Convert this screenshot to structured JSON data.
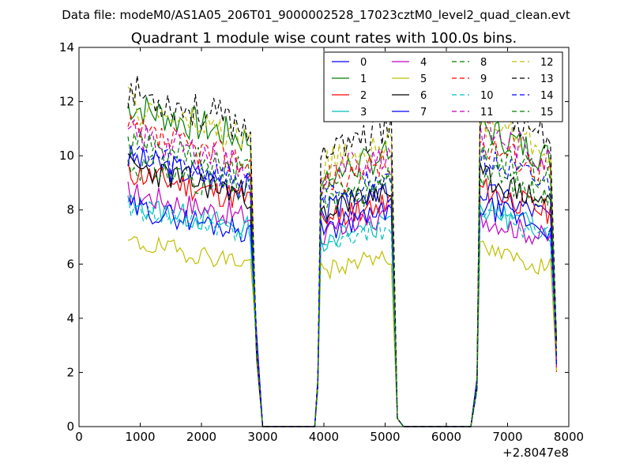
{
  "suptitle": "Data file: modeM0/AS1A05_206T01_9000002528_17023cztM0_level2_quad_clean.evt",
  "chart_data": {
    "type": "line",
    "title": "Quadrant 1 module wise count rates with 100.0s bins.",
    "xlabel": "",
    "ylabel": "",
    "x_offset_label": "+2.8047e8",
    "xlim": [
      0,
      8000
    ],
    "ylim": [
      0,
      14
    ],
    "xticks": [
      0,
      1000,
      2000,
      3000,
      4000,
      5000,
      6000,
      7000,
      8000
    ],
    "yticks": [
      0,
      2,
      4,
      6,
      8,
      10,
      12,
      14
    ],
    "grid": false,
    "legend_position": "top-right",
    "segments": [
      {
        "start": 800,
        "end": 2800
      },
      {
        "start": 3900,
        "end": 5100
      },
      {
        "start": 6500,
        "end": 7700
      }
    ],
    "series": [
      {
        "name": "0",
        "color": "#0000ff",
        "dashed": false,
        "levels": [
          9.2,
          8.3,
          8.1
        ],
        "seed": 3
      },
      {
        "name": "1",
        "color": "#007f00",
        "dashed": false,
        "levels": [
          11.0,
          9.6,
          10.3
        ],
        "seed": 7
      },
      {
        "name": "2",
        "color": "#ff0000",
        "dashed": false,
        "levels": [
          8.7,
          8.0,
          8.2
        ],
        "seed": 11
      },
      {
        "name": "3",
        "color": "#00bfbf",
        "dashed": false,
        "levels": [
          7.6,
          7.2,
          7.5
        ],
        "seed": 13
      },
      {
        "name": "4",
        "color": "#bf00bf",
        "dashed": false,
        "levels": [
          8.0,
          7.4,
          7.2
        ],
        "seed": 17
      },
      {
        "name": "5",
        "color": "#bfbf00",
        "dashed": false,
        "levels": [
          6.3,
          6.0,
          6.1
        ],
        "seed": 19
      },
      {
        "name": "6",
        "color": "#000000",
        "dashed": false,
        "levels": [
          8.9,
          8.3,
          8.6
        ],
        "seed": 23
      },
      {
        "name": "7",
        "color": "#0000ff",
        "dashed": false,
        "levels": [
          7.5,
          7.6,
          7.6
        ],
        "seed": 29
      },
      {
        "name": "8",
        "color": "#007f00",
        "dashed": true,
        "levels": [
          9.0,
          8.5,
          8.8
        ],
        "seed": 31
      },
      {
        "name": "9",
        "color": "#ff0000",
        "dashed": true,
        "levels": [
          10.1,
          9.3,
          9.8
        ],
        "seed": 37
      },
      {
        "name": "10",
        "color": "#00bfbf",
        "dashed": true,
        "levels": [
          7.5,
          7.0,
          7.4
        ],
        "seed": 41
      },
      {
        "name": "11",
        "color": "#bf00bf",
        "dashed": true,
        "levels": [
          10.0,
          9.7,
          10.2
        ],
        "seed": 43
      },
      {
        "name": "12",
        "color": "#bfbf00",
        "dashed": true,
        "levels": [
          11.0,
          10.1,
          10.6
        ],
        "seed": 47
      },
      {
        "name": "13",
        "color": "#000000",
        "dashed": true,
        "levels": [
          11.5,
          10.5,
          11.2
        ],
        "seed": 53
      },
      {
        "name": "14",
        "color": "#0000ff",
        "dashed": true,
        "levels": [
          9.4,
          8.8,
          9.2
        ],
        "seed": 59
      },
      {
        "name": "15",
        "color": "#007f00",
        "dashed": true,
        "levels": [
          9.7,
          8.9,
          9.5
        ],
        "seed": 61
      }
    ]
  }
}
